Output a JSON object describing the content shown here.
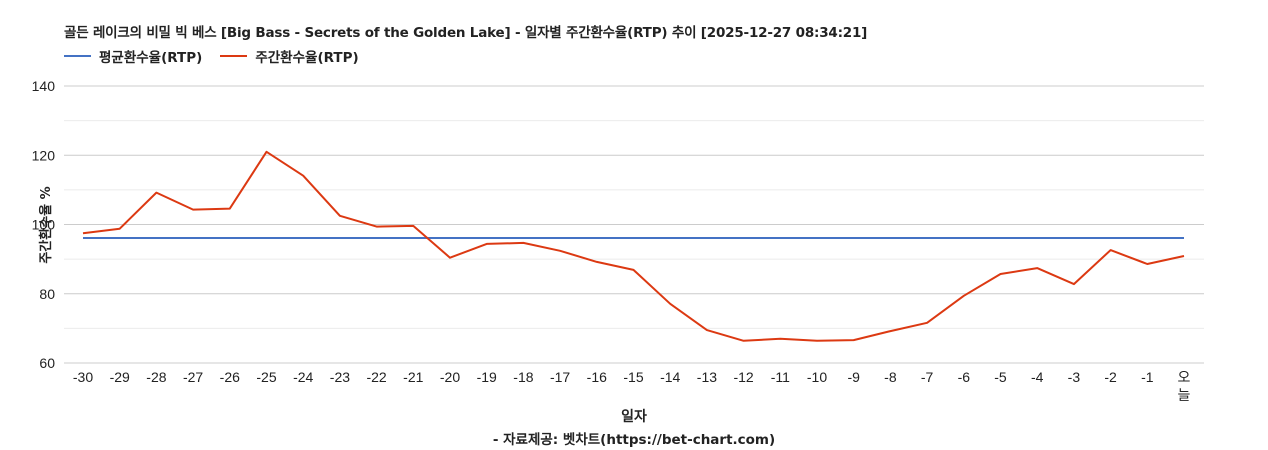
{
  "title": "골든 레이크의 비밀 빅 베스 [Big Bass - Secrets of the Golden Lake] - 일자별 주간환수율(RTP) 추이 [2025-12-27 08:34:21]",
  "legend": [
    {
      "label": "평균환수율(RTP)",
      "color": "#4472c4"
    },
    {
      "label": "주간환수율(RTP)",
      "color": "#dc3912"
    }
  ],
  "axes": {
    "ylabel": "주간환수율 %",
    "xlabel": "일자",
    "yticks": [
      "140",
      "120",
      "100",
      "80",
      "60"
    ]
  },
  "credit": "- 자료제공: 벳차트(https://bet-chart.com)",
  "chart_data": {
    "type": "line",
    "title": "골든 레이크의 비밀 빅 베스 [Big Bass - Secrets of the Golden Lake] - 일자별 주간환수율(RTP) 추이 [2025-12-27 08:34:21]",
    "xlabel": "일자",
    "ylabel": "주간환수율 %",
    "ylim": [
      60,
      140
    ],
    "yticks": [
      60,
      80,
      100,
      120,
      140
    ],
    "grid": true,
    "minor_grid_step": 10,
    "legend_position": "top-left",
    "categories": [
      "-30",
      "-29",
      "-28",
      "-27",
      "-26",
      "-25",
      "-24",
      "-23",
      "-22",
      "-21",
      "-20",
      "-19",
      "-18",
      "-17",
      "-16",
      "-15",
      "-14",
      "-13",
      "-12",
      "-11",
      "-10",
      "-9",
      "-8",
      "-7",
      "-6",
      "-5",
      "-4",
      "-3",
      "-2",
      "-1",
      "오늘"
    ],
    "series": [
      {
        "name": "평균환수율(RTP)",
        "color": "#4472c4",
        "values": [
          96.1,
          96.1,
          96.1,
          96.1,
          96.1,
          96.1,
          96.1,
          96.1,
          96.1,
          96.1,
          96.1,
          96.1,
          96.1,
          96.1,
          96.1,
          96.1,
          96.1,
          96.1,
          96.1,
          96.1,
          96.1,
          96.1,
          96.1,
          96.1,
          96.1,
          96.1,
          96.1,
          96.1,
          96.1,
          96.1,
          96.1
        ]
      },
      {
        "name": "주간환수율(RTP)",
        "color": "#dc3912",
        "values": [
          97.5,
          98.8,
          109.2,
          104.3,
          104.6,
          121.0,
          114.1,
          102.5,
          99.4,
          99.6,
          90.4,
          94.4,
          94.7,
          92.4,
          89.2,
          86.9,
          77.1,
          69.5,
          66.4,
          67.0,
          66.4,
          66.6,
          69.2,
          71.6,
          79.4,
          85.7,
          87.4,
          82.8,
          92.6,
          88.6,
          90.9
        ]
      }
    ]
  }
}
